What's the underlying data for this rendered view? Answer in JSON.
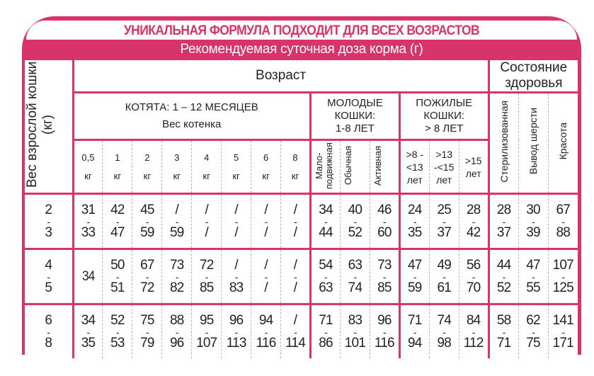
{
  "title": "УНИКАЛЬНАЯ ФОРМУЛА ПОДХОДИТ ДЛЯ ВСЕХ ВОЗРАСТОВ",
  "subtitle": "Рекомендуемая суточная доза корма (г)",
  "colors": {
    "accent": "#d9336b",
    "grid": "#ef9ab6"
  },
  "header": {
    "weight_column": "Вес взрослой кошки (кг)",
    "age": "Возраст",
    "health": "Состояние здоровья",
    "kittens": {
      "line1": "КОТЯТА: 1 – 12 МЕСЯЦЕВ",
      "line2": "Вес котенка"
    },
    "young": {
      "line1": "МОЛОДЫЕ",
      "line2": "КОШКИ:",
      "line3": "1-8 ЛЕТ"
    },
    "senior": {
      "line1": "ПОЖИЛЫЕ",
      "line2": "КОШКИ:",
      "line3": "> 8 ЛЕТ"
    },
    "kitten_cols": [
      {
        "value": "0,5",
        "unit": "кг"
      },
      {
        "value": "1",
        "unit": "кг"
      },
      {
        "value": "2",
        "unit": "кг"
      },
      {
        "value": "3",
        "unit": "кг"
      },
      {
        "value": "4",
        "unit": "кг"
      },
      {
        "value": "5",
        "unit": "кг"
      },
      {
        "value": "6",
        "unit": "кг"
      },
      {
        "value": "8",
        "unit": "кг"
      }
    ],
    "young_cols": [
      "Мало-подвижная",
      "Обычная",
      "Активная"
    ],
    "senior_cols": [
      {
        "line1": ">8 -",
        "line2": "<13",
        "line3": "лет"
      },
      {
        "line1": ">13",
        "line2": "-<15",
        "line3": "лет"
      },
      {
        "line1": ">15",
        "line2": "",
        "line3": "лет"
      }
    ],
    "health_cols": [
      "Стерилизованная",
      "Вывод шерсти",
      "Красота"
    ]
  },
  "rows": [
    {
      "weight": [
        "2",
        "3"
      ],
      "cells": [
        [
          "31",
          "33"
        ],
        [
          "42",
          "47"
        ],
        [
          "45",
          "59"
        ],
        [
          "/",
          "59"
        ],
        [
          "/",
          "/"
        ],
        [
          "/",
          "/"
        ],
        [
          "/",
          "/"
        ],
        [
          "/",
          "/"
        ],
        [
          "34",
          "44"
        ],
        [
          "40",
          "52"
        ],
        [
          "46",
          "60"
        ],
        [
          "24",
          "35"
        ],
        [
          "25",
          "37"
        ],
        [
          "28",
          "42"
        ],
        [
          "28",
          "37"
        ],
        [
          "30",
          "39"
        ],
        [
          "67",
          "88"
        ]
      ]
    },
    {
      "weight": [
        "4",
        "5"
      ],
      "cells": [
        [
          "34"
        ],
        [
          "50",
          "51"
        ],
        [
          "67",
          "72"
        ],
        [
          "73",
          "82"
        ],
        [
          "72",
          "85"
        ],
        [
          "/",
          "83"
        ],
        [
          "/",
          "/"
        ],
        [
          "/",
          "/"
        ],
        [
          "54",
          "63"
        ],
        [
          "63",
          "74"
        ],
        [
          "73",
          "85"
        ],
        [
          "47",
          "59"
        ],
        [
          "49",
          "61"
        ],
        [
          "56",
          "70"
        ],
        [
          "44",
          "52"
        ],
        [
          "47",
          "55"
        ],
        [
          "107",
          "125"
        ]
      ]
    },
    {
      "weight": [
        "6",
        "8"
      ],
      "cells": [
        [
          "34",
          "35"
        ],
        [
          "52",
          "53"
        ],
        [
          "75",
          "79"
        ],
        [
          "88",
          "96"
        ],
        [
          "95",
          "107"
        ],
        [
          "96",
          "113"
        ],
        [
          "94",
          "116"
        ],
        [
          "/",
          "114"
        ],
        [
          "71",
          "86"
        ],
        [
          "83",
          "101"
        ],
        [
          "96",
          "116"
        ],
        [
          "71",
          "94"
        ],
        [
          "74",
          "98"
        ],
        [
          "84",
          "112"
        ],
        [
          "58",
          "71"
        ],
        [
          "62",
          "75"
        ],
        [
          "141",
          "171"
        ]
      ]
    }
  ]
}
